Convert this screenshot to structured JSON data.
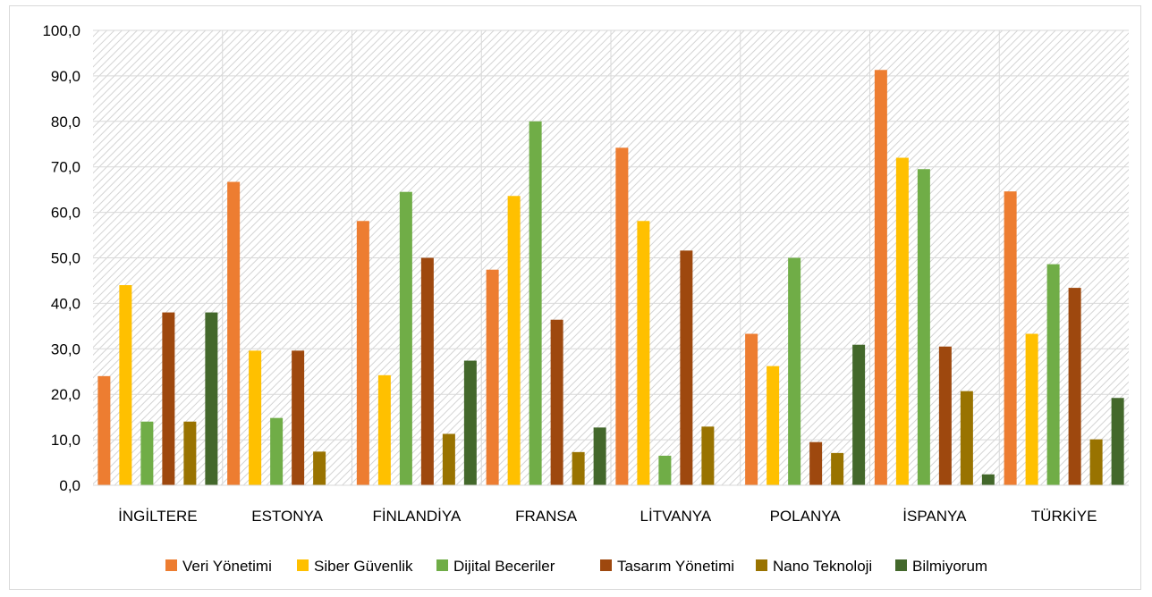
{
  "chart_data": {
    "type": "bar",
    "title": "",
    "xlabel": "",
    "ylabel": "",
    "ylim": [
      0,
      100
    ],
    "y_ticks": [
      "0,0",
      "10,0",
      "20,0",
      "30,0",
      "40,0",
      "50,0",
      "60,0",
      "70,0",
      "80,0",
      "90,0",
      "100,0"
    ],
    "grid": true,
    "legend_position": "bottom",
    "categories": [
      "İNGİLTERE",
      "ESTONYA",
      "FİNLANDİYA",
      "FRANSA",
      "LİTVANYA",
      "POLANYA",
      "İSPANYA",
      "TÜRKİYE"
    ],
    "series": [
      {
        "name": "Veri Yönetimi",
        "color": "#ed7d31",
        "values": [
          24.0,
          66.7,
          58.1,
          47.4,
          74.2,
          33.3,
          91.3,
          64.6
        ]
      },
      {
        "name": "Siber Güvenlik",
        "color": "#ffc000",
        "values": [
          44.0,
          29.6,
          24.2,
          63.6,
          58.1,
          26.2,
          72.0,
          33.3
        ]
      },
      {
        "name": "Dijital Beceriler",
        "color": "#70ad47",
        "values": [
          14.0,
          14.8,
          64.5,
          80.0,
          6.5,
          50.0,
          69.5,
          48.6
        ]
      },
      {
        "name": "Tasarım Yönetimi",
        "color": "#9e480e",
        "values": [
          38.0,
          29.6,
          50.0,
          36.4,
          51.6,
          9.5,
          30.5,
          43.4
        ]
      },
      {
        "name": "Nano Teknoloji",
        "color": "#997300",
        "values": [
          14.0,
          7.4,
          11.3,
          7.3,
          12.9,
          7.1,
          20.7,
          10.1
        ]
      },
      {
        "name": "Bilmiyorum",
        "color": "#43682b",
        "values": [
          38.0,
          0,
          27.4,
          12.7,
          0,
          30.9,
          2.4,
          19.2
        ]
      }
    ]
  }
}
